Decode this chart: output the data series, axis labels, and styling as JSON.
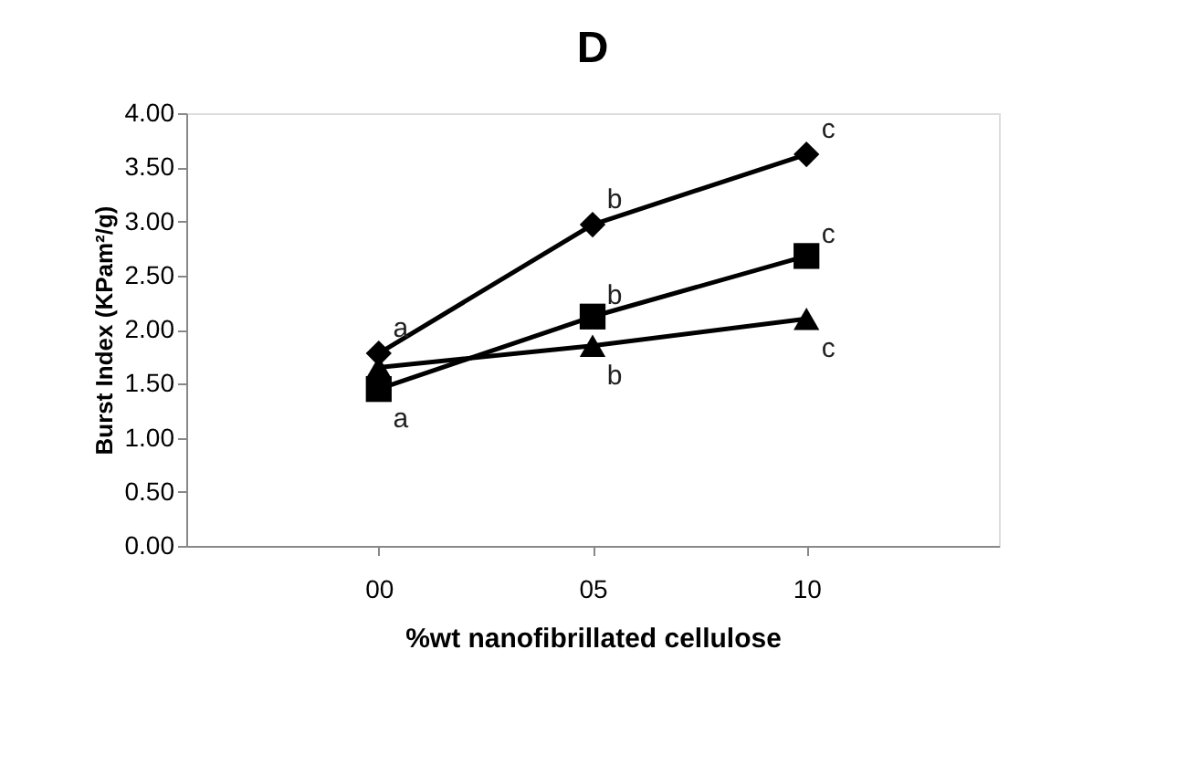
{
  "chart_data": {
    "type": "line",
    "title": "D",
    "xlabel": "%wt nanofibrillated  cellulose",
    "ylabel": "Burst Index (KPam²/g)",
    "categories": [
      "00",
      "05",
      "10"
    ],
    "series": [
      {
        "color": "#000000",
        "marker": "diamond",
        "values": [
          1.78,
          2.97,
          3.62
        ]
      },
      {
        "color": "#000000",
        "marker": "square",
        "values": [
          1.45,
          2.12,
          2.68
        ]
      },
      {
        "color": "#000000",
        "marker": "triangle",
        "values": [
          1.65,
          1.85,
          2.1
        ]
      }
    ],
    "ylim": [
      0,
      4
    ],
    "yticks": [
      {
        "value": 0,
        "label": "0.00"
      },
      {
        "value": 0.5,
        "label": "0.50"
      },
      {
        "value": 1,
        "label": "1.00"
      },
      {
        "value": 1.5,
        "label": "1.50"
      },
      {
        "value": 2,
        "label": "2.00"
      },
      {
        "value": 2.5,
        "label": "2.50"
      },
      {
        "value": 3,
        "label": "3.00"
      },
      {
        "value": 3.5,
        "label": "3.50"
      },
      {
        "value": 4,
        "label": "4.00"
      }
    ],
    "grid": false,
    "line_style": "solid",
    "annotations": [
      {
        "text": "a",
        "x": "00",
        "y": 1.78
      },
      {
        "text": "a",
        "x": "00",
        "y": 1.45
      },
      {
        "text": "b",
        "x": "05",
        "y": 2.97
      },
      {
        "text": "b",
        "x": "05",
        "y": 2.12
      },
      {
        "text": "b",
        "x": "05",
        "y": 1.85
      },
      {
        "text": "c",
        "x": "10",
        "y": 3.62
      },
      {
        "text": "c",
        "x": "10",
        "y": 2.68
      },
      {
        "text": "c",
        "x": "10",
        "y": 2.1
      }
    ]
  }
}
